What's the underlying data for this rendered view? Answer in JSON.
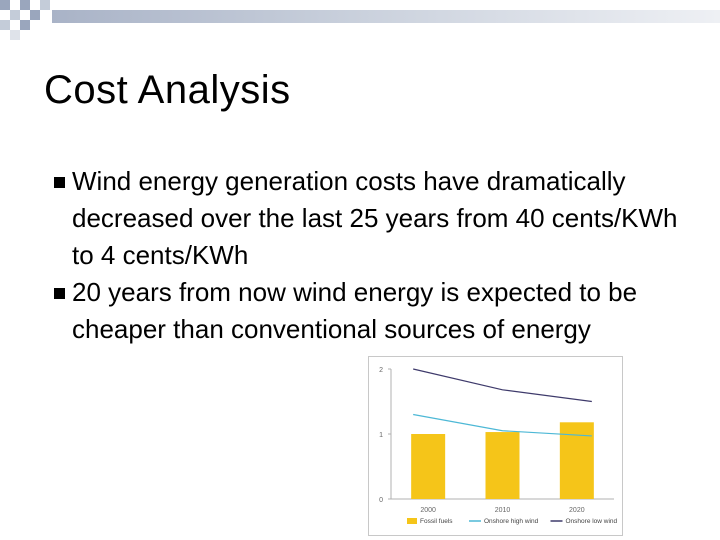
{
  "slide": {
    "title": "Cost Analysis",
    "bullets": [
      "Wind energy generation costs have dramatically decreased over the last 25 years from 40 cents/KWh to 4 cents/KWh",
      "20 years from now wind energy is expected to be cheaper than conventional sources of energy"
    ]
  },
  "colors": {
    "bar": "#f5c519",
    "onshore_high": "#4db8d6",
    "onshore_low": "#3e3a6b",
    "band": "#a9b3c7"
  },
  "chart_data": {
    "type": "bar",
    "categories": [
      "2000",
      "2010",
      "2020"
    ],
    "ylim": [
      0,
      2
    ],
    "yticks": [
      "0",
      "1",
      "2"
    ],
    "series": [
      {
        "name": "Fossil fuels",
        "kind": "bar",
        "values": [
          1.0,
          1.03,
          1.18
        ]
      },
      {
        "name": "Onshore high wind",
        "kind": "line",
        "values": [
          1.3,
          1.05,
          0.97
        ]
      },
      {
        "name": "Onshore low wind",
        "kind": "line",
        "values": [
          2.0,
          1.68,
          1.5
        ]
      }
    ],
    "legend": [
      "Fossil fuels",
      "Onshore high wind",
      "Onshore low wind"
    ],
    "legend_position": "bottom"
  }
}
